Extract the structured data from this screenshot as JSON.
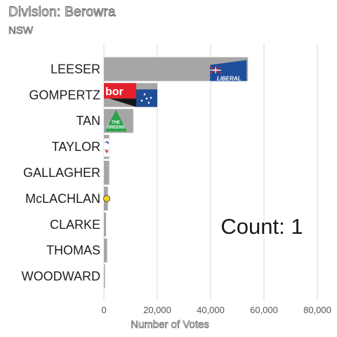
{
  "title": "Division: Berowra",
  "subtitle": "NSW",
  "chart_data": {
    "type": "bar",
    "orientation": "horizontal",
    "categories": [
      "LEESER",
      "GOMPERTZ",
      "TAN",
      "TAYLOR",
      "GALLAGHER",
      "McLACHLAN",
      "CLARKE",
      "THOMAS",
      "WOODWARD"
    ],
    "values": [
      54000,
      20000,
      11000,
      2000,
      2000,
      1500,
      800,
      1200,
      400
    ],
    "xlabel": "Number of Votes",
    "ylabel": "",
    "xlim": [
      0,
      80000
    ],
    "xticks": [
      0,
      20000,
      40000,
      60000,
      80000
    ],
    "xtick_labels": [
      "0",
      "20,000",
      "40,000",
      "60,000",
      "80,000"
    ],
    "grid": "vertical",
    "bar_color": "#a6a6a6",
    "annotation": "Count:  1",
    "party_logos": {
      "LEESER": "liberal-logo",
      "GOMPERTZ": "labor-logo",
      "TAN": "greens-logo",
      "TAYLOR": "party-logo",
      "McLACHLAN": "party-logo"
    },
    "logo_texts": {
      "LEESER": "LIBERAL",
      "GOMPERTZ": "bor",
      "TAN": "THE GREENS"
    }
  }
}
